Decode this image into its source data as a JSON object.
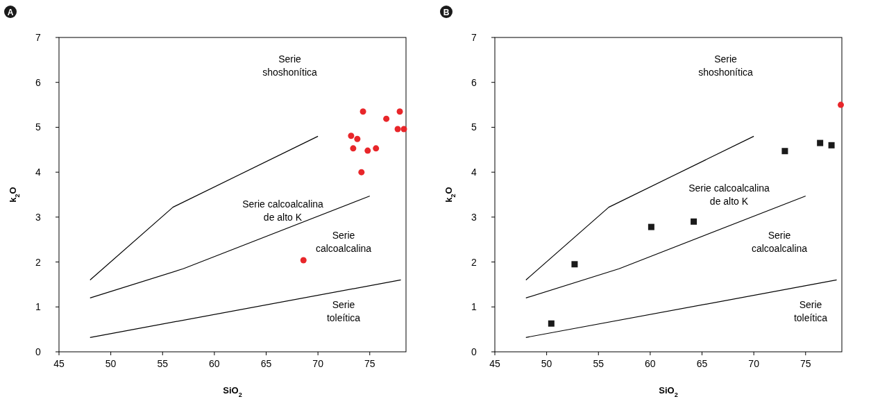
{
  "chart_data": [
    {
      "type": "scatter",
      "title": "A",
      "xlabel": "SiO$_{2}$",
      "ylabel": "k$_{2}$O",
      "xlim": [
        45,
        78.5
      ],
      "ylim": [
        0,
        7
      ],
      "xticks": [
        45,
        50,
        55,
        60,
        65,
        70,
        75
      ],
      "yticks": [
        0,
        1,
        2,
        3,
        4,
        5,
        6,
        7
      ],
      "grid": false,
      "series": [
        {
          "type": "line",
          "color": "#000000",
          "marker": "none",
          "x": [
            48,
            56,
            70
          ],
          "values": [
            1.6,
            3.22,
            4.8
          ]
        },
        {
          "type": "line",
          "color": "#000000",
          "marker": "none",
          "x": [
            48,
            57,
            75
          ],
          "values": [
            1.2,
            1.85,
            3.47
          ]
        },
        {
          "type": "line",
          "color": "#000000",
          "marker": "none",
          "x": [
            48,
            78
          ],
          "values": [
            0.32,
            1.6
          ]
        },
        {
          "color": "#e8262a",
          "marker": "circle",
          "x": [
            74.35,
            77.9,
            76.6,
            77.7,
            78.3,
            73.2,
            73.8,
            73.4,
            74.8,
            75.6,
            74.2,
            68.6
          ],
          "values": [
            5.35,
            5.35,
            5.19,
            4.96,
            4.96,
            4.81,
            4.74,
            4.53,
            4.48,
            4.53,
            4.0,
            2.04
          ]
        }
      ],
      "annotations": [
        "Serie\nshoshonítica",
        "Serie calcoalcalina\nde alto K",
        "Serie\ncalcoalcalina",
        "Serie\ntoleítica"
      ]
    },
    {
      "type": "scatter",
      "title": "B",
      "xlabel": "SiO$_{2}$",
      "ylabel": "k$_{2}$O",
      "xlim": [
        45,
        78.5
      ],
      "ylim": [
        0,
        7
      ],
      "xticks": [
        45,
        50,
        55,
        60,
        65,
        70,
        75
      ],
      "yticks": [
        0,
        1,
        2,
        3,
        4,
        5,
        6,
        7
      ],
      "grid": false,
      "series": [
        {
          "type": "line",
          "color": "#000000",
          "marker": "none",
          "x": [
            48,
            56,
            70
          ],
          "values": [
            1.6,
            3.22,
            4.8
          ]
        },
        {
          "type": "line",
          "color": "#000000",
          "marker": "none",
          "x": [
            48,
            57,
            75
          ],
          "values": [
            1.2,
            1.85,
            3.47
          ]
        },
        {
          "type": "line",
          "color": "#000000",
          "marker": "none",
          "x": [
            48,
            78
          ],
          "values": [
            0.32,
            1.6
          ]
        },
        {
          "color": "#1a1a1a",
          "marker": "square",
          "x": [
            52.7,
            50.45,
            60.1,
            64.2,
            73.0,
            76.4,
            77.5
          ],
          "values": [
            1.95,
            0.63,
            2.78,
            2.9,
            4.47,
            4.65,
            4.6
          ]
        },
        {
          "color": "#e8262a",
          "marker": "circle",
          "x": [
            78.4
          ],
          "values": [
            5.5
          ]
        }
      ],
      "annotations": [
        "Serie\nshoshonítica",
        "Serie calcoalcalina\nde alto K",
        "Serie\ncalcoalcalina",
        "Serie\ntoleítica"
      ]
    }
  ]
}
